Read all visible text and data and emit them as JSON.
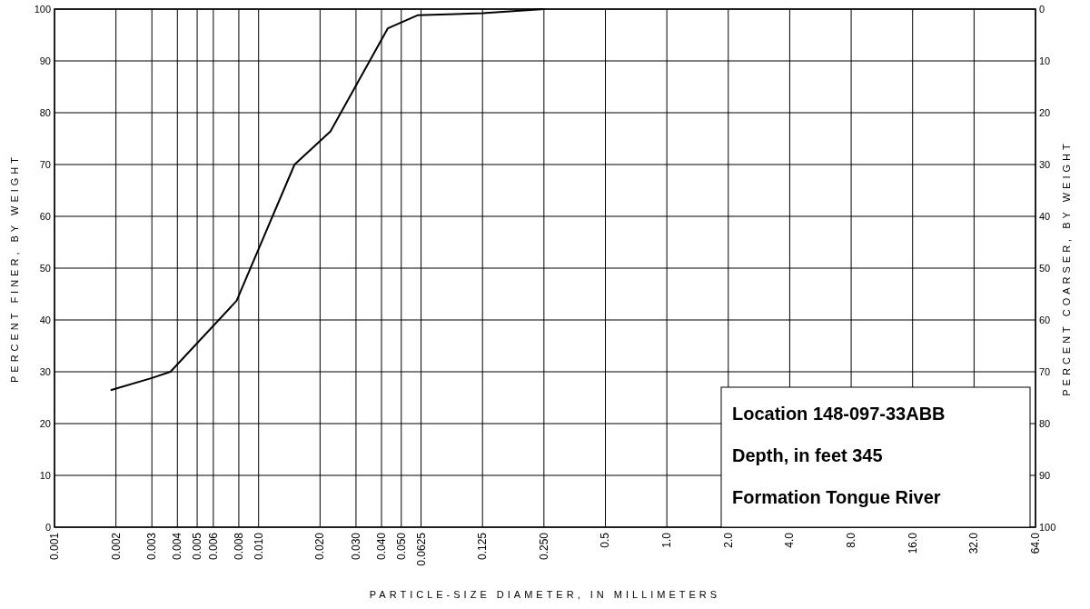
{
  "chart_data": {
    "type": "line",
    "xlabel": "PARTICLE-SIZE DIAMETER, IN MILLIMETERS",
    "ylabel": "PERCENT FINER, BY WEIGHT",
    "y2label": "PERCENT COARSER, BY WEIGHT",
    "log": "x",
    "xlim": [
      0.001,
      64
    ],
    "xticks": [
      {
        "value": 0.001,
        "label": "0.001"
      },
      {
        "value": 0.002,
        "label": "0.002"
      },
      {
        "value": 0.003,
        "label": "0.003"
      },
      {
        "value": 0.004,
        "label": "0.004"
      },
      {
        "value": 0.005,
        "label": "0.005"
      },
      {
        "value": 0.006,
        "label": "0.006"
      },
      {
        "value": 0.008,
        "label": "0.008"
      },
      {
        "value": 0.01,
        "label": "0.010"
      },
      {
        "value": 0.02,
        "label": "0.020"
      },
      {
        "value": 0.03,
        "label": "0.030"
      },
      {
        "value": 0.04,
        "label": "0.040"
      },
      {
        "value": 0.05,
        "label": "0.050"
      },
      {
        "value": 0.0625,
        "label": "0.0625"
      },
      {
        "value": 0.125,
        "label": "0.125"
      },
      {
        "value": 0.25,
        "label": "0.250"
      },
      {
        "value": 0.5,
        "label": "0.5"
      },
      {
        "value": 1,
        "label": "1.0"
      },
      {
        "value": 2,
        "label": "2.0"
      },
      {
        "value": 4,
        "label": "4.0"
      },
      {
        "value": 8,
        "label": "8.0"
      },
      {
        "value": 16,
        "label": "16.0"
      },
      {
        "value": 32,
        "label": "32.0"
      },
      {
        "value": 64,
        "label": "64.0"
      }
    ],
    "ylim": [
      0,
      100
    ],
    "yticks": [
      0,
      10,
      20,
      30,
      40,
      50,
      60,
      70,
      80,
      90,
      100
    ],
    "y2lim": [
      100,
      0
    ],
    "y2ticks": [
      0,
      10,
      20,
      30,
      40,
      50,
      60,
      70,
      80,
      90,
      100
    ],
    "grid": true,
    "marker": "none",
    "series": [
      {
        "color": "#000000",
        "x": [
          0.0019,
          0.003,
          0.0037,
          0.0078,
          0.015,
          0.0225,
          0.043,
          0.06,
          0.125,
          0.25
        ],
        "values": [
          26.5,
          28.8,
          30,
          43.7,
          70,
          76.4,
          96.3,
          98.8,
          99.2,
          100
        ]
      }
    ],
    "annotations": [
      "Location 148-097-33ABB",
      "Depth, in feet 345",
      "Formation Tongue River"
    ]
  }
}
